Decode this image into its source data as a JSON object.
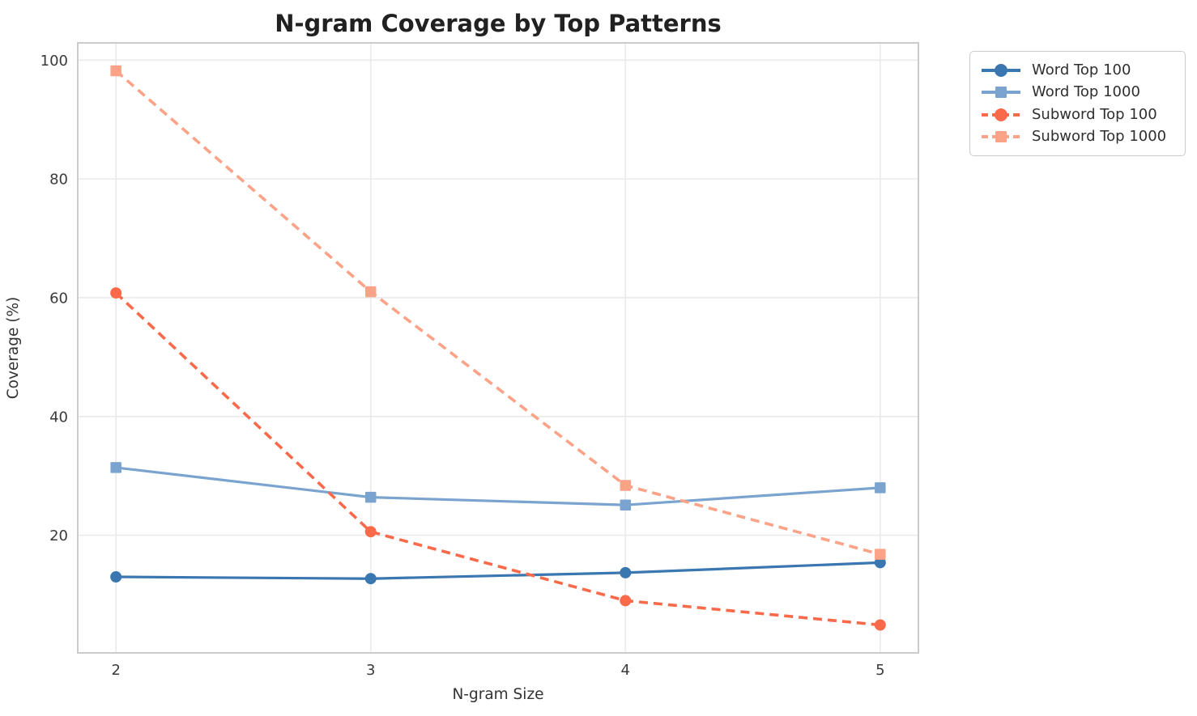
{
  "page": {
    "background": "#ffffff",
    "grid_color": "#eaeaea",
    "spine_color": "#cbcbcb"
  },
  "chart_data": {
    "type": "line",
    "title": "N-gram Coverage by Top Patterns",
    "xlabel": "N-gram Size",
    "ylabel": "Coverage (%)",
    "x": [
      2,
      3,
      4,
      5
    ],
    "xticks": [
      "2",
      "3",
      "4",
      "5"
    ],
    "yticks": [
      20,
      40,
      60,
      80,
      100
    ],
    "xlim": [
      1.85,
      5.15
    ],
    "ylim": [
      0.2,
      102.9
    ],
    "grid": true,
    "legend_position": "outside-upper-right",
    "series": [
      {
        "name": "Word Top 100",
        "color": "#3a76af",
        "marker": "circle",
        "line_style": "solid",
        "values": [
          13.0,
          12.7,
          13.7,
          15.4
        ]
      },
      {
        "name": "Word Top 1000",
        "color": "#7aa4cf",
        "marker": "square",
        "line_style": "solid",
        "values": [
          31.4,
          26.4,
          25.1,
          28.0
        ]
      },
      {
        "name": "Subword Top 100",
        "color": "#fa6a4a",
        "marker": "circle",
        "line_style": "dashed",
        "values": [
          60.8,
          20.6,
          9.0,
          4.9
        ]
      },
      {
        "name": "Subword Top 1000",
        "color": "#fba287",
        "marker": "square",
        "line_style": "dashed",
        "values": [
          98.2,
          61.0,
          28.4,
          16.8
        ]
      }
    ]
  }
}
